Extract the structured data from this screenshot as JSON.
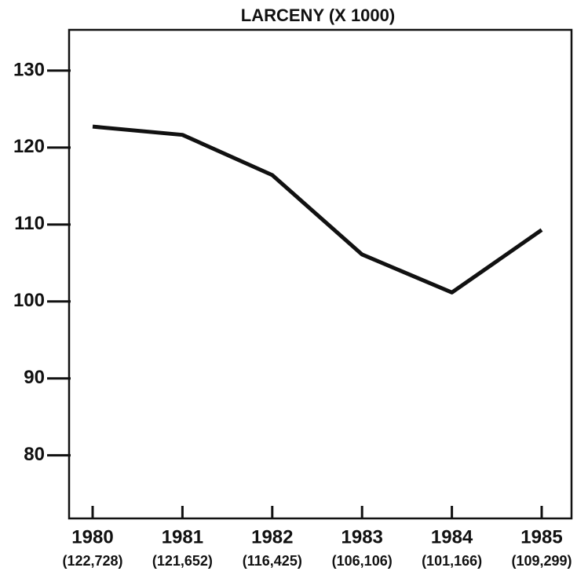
{
  "chart_data": {
    "type": "line",
    "title": "LARCENY (X 1000)",
    "categories": [
      "1980",
      "1981",
      "1982",
      "1983",
      "1984",
      "1985"
    ],
    "values": [
      122.728,
      121.652,
      116.425,
      106.106,
      101.166,
      109.299
    ],
    "value_labels": [
      "(122,728)",
      "(121,652)",
      "(116,425)",
      "(106,106)",
      "(101,166)",
      "(109,299)"
    ],
    "color": "#111111",
    "ylim": [
      71.8,
      135.3
    ],
    "yticks": [
      80,
      90,
      100,
      110,
      120,
      130
    ],
    "grid": false
  }
}
